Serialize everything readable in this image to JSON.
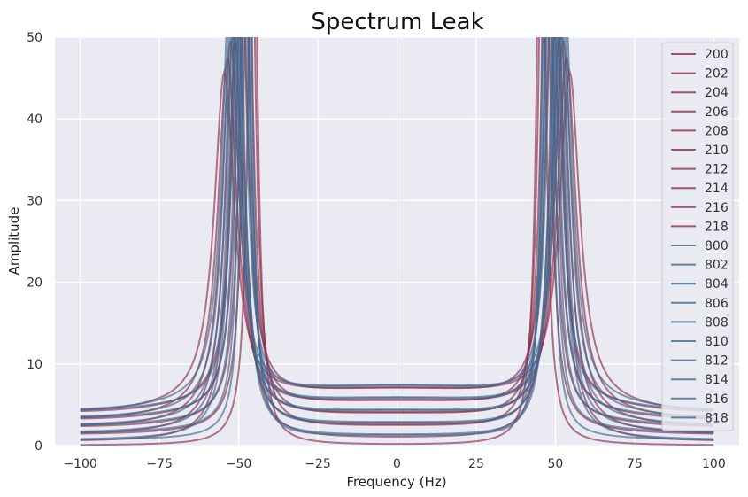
{
  "chart_data": {
    "type": "line",
    "title": "Spectrum Leak",
    "xlabel": "Frequency (Hz)",
    "ylabel": "Amplitude",
    "xlim": [
      -108,
      108
    ],
    "ylim": [
      0,
      50
    ],
    "x_ticks": [
      -100,
      -75,
      -50,
      -25,
      0,
      25,
      50,
      75,
      100
    ],
    "x_tick_labels": [
      "−100",
      "−75",
      "−50",
      "−25",
      "0",
      "25",
      "50",
      "75",
      "100"
    ],
    "y_ticks": [
      0,
      10,
      20,
      30,
      40,
      50
    ],
    "y_tick_labels": [
      "0",
      "10",
      "20",
      "30",
      "40",
      "50"
    ],
    "grid": true,
    "legend_position": "upper-right",
    "series_color_groups": {
      "red": "#8c2d4a",
      "blue": "#40698f"
    },
    "series": [
      {
        "name": "200",
        "color": "#8c2d4a",
        "peak_hz": 50,
        "offset": 0
      },
      {
        "name": "202",
        "color": "#8c2d4a",
        "peak_hz": 50,
        "offset": 2
      },
      {
        "name": "204",
        "color": "#8c2d4a",
        "peak_hz": 50,
        "offset": 4
      },
      {
        "name": "206",
        "color": "#8c2d4a",
        "peak_hz": 50,
        "offset": 6
      },
      {
        "name": "208",
        "color": "#8c2d4a",
        "peak_hz": 50,
        "offset": 8
      },
      {
        "name": "210",
        "color": "#8c2d4a",
        "peak_hz": 50,
        "offset": 10
      },
      {
        "name": "212",
        "color": "#8c2d4a",
        "peak_hz": 50,
        "offset": 12
      },
      {
        "name": "214",
        "color": "#8c2d4a",
        "peak_hz": 50,
        "offset": 14
      },
      {
        "name": "216",
        "color": "#8c2d4a",
        "peak_hz": 50,
        "offset": 16
      },
      {
        "name": "218",
        "color": "#8c2d4a",
        "peak_hz": 50,
        "offset": 18
      },
      {
        "name": "800",
        "color": "#40698f",
        "peak_hz": 50,
        "offset": 0
      },
      {
        "name": "802",
        "color": "#40698f",
        "peak_hz": 50,
        "offset": 2
      },
      {
        "name": "804",
        "color": "#40698f",
        "peak_hz": 50,
        "offset": 4
      },
      {
        "name": "806",
        "color": "#40698f",
        "peak_hz": 50,
        "offset": 6
      },
      {
        "name": "808",
        "color": "#40698f",
        "peak_hz": 50,
        "offset": 8
      },
      {
        "name": "810",
        "color": "#40698f",
        "peak_hz": 50,
        "offset": 10
      },
      {
        "name": "812",
        "color": "#40698f",
        "peak_hz": 50,
        "offset": 12
      },
      {
        "name": "814",
        "color": "#40698f",
        "peak_hz": 50,
        "offset": 14
      },
      {
        "name": "816",
        "color": "#40698f",
        "peak_hz": 50,
        "offset": 16
      },
      {
        "name": "818",
        "color": "#40698f",
        "peak_hz": 50,
        "offset": 18
      }
    ]
  }
}
